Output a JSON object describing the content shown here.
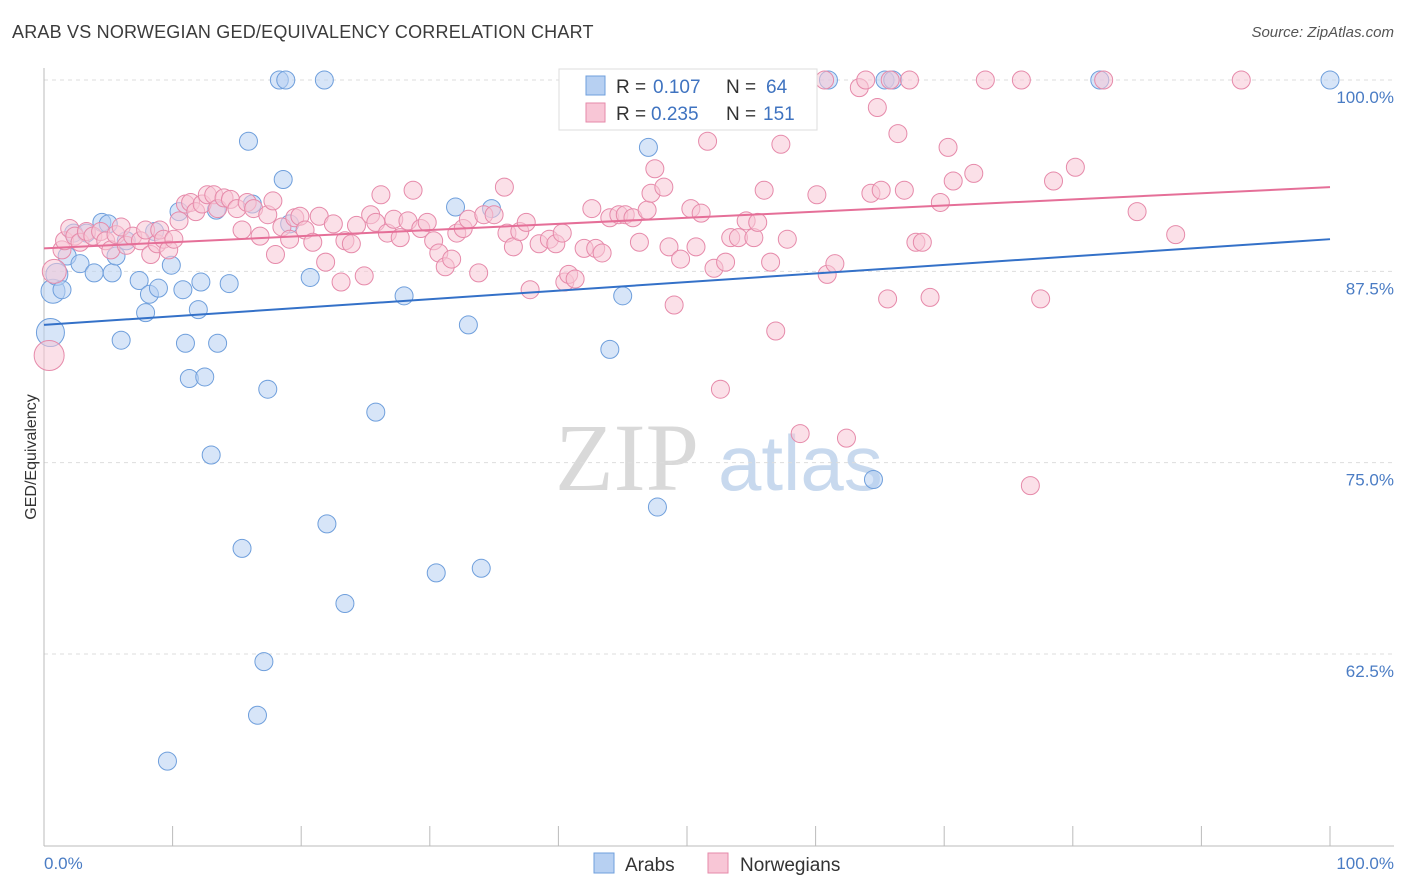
{
  "title": "ARAB VS NORWEGIAN GED/EQUIVALENCY CORRELATION CHART",
  "source": "Source: ZipAtlas.com",
  "watermark": {
    "zip": "ZIP",
    "atlas": "atlas"
  },
  "colors": {
    "arab_fill": "#b7d0f2",
    "arab_stroke": "#6f9fdc",
    "arab_line": "#3471c8",
    "norw_fill": "#f8c6d6",
    "norw_stroke": "#e68aaa",
    "norw_line": "#e56f98",
    "tick_label": "#4a7cc4",
    "grid": "#dddddd"
  },
  "legend": {
    "r_label": "R =",
    "n_label": "N =",
    "rows": [
      {
        "r": "0.107",
        "n": "64"
      },
      {
        "r": "0.235",
        "n": "151"
      }
    ]
  },
  "chart_data": {
    "type": "scatter",
    "title": "ARAB VS NORWEGIAN GED/EQUIVALENCY CORRELATION CHART",
    "xlabel": "",
    "ylabel": "GED/Equivalency",
    "xlim": [
      0,
      100
    ],
    "ylim": [
      50,
      100
    ],
    "x_tick_labels": [
      "0.0%",
      "100.0%"
    ],
    "y_ticks": [
      {
        "value": 100,
        "label": "100.0%"
      },
      {
        "value": 87.5,
        "label": "87.5%"
      },
      {
        "value": 75,
        "label": "75.0%"
      },
      {
        "value": 62.5,
        "label": "62.5%"
      }
    ],
    "grid": true,
    "legend_position": "bottom",
    "series": [
      {
        "name": "Arabs",
        "trend": {
          "x": [
            0,
            100
          ],
          "y": [
            84.0,
            89.6
          ]
        },
        "points": [
          [
            0.5,
            83.5,
            14
          ],
          [
            0.7,
            86.2,
            12
          ],
          [
            1.0,
            87.3,
            11
          ],
          [
            1.4,
            86.3,
            9
          ],
          [
            1.8,
            88.5,
            9
          ],
          [
            2.3,
            90.0,
            9
          ],
          [
            2.8,
            88.0,
            9
          ],
          [
            3.3,
            90.0,
            9
          ],
          [
            3.9,
            87.4,
            9
          ],
          [
            4.5,
            90.7,
            9
          ],
          [
            5.0,
            90.6,
            9
          ],
          [
            5.3,
            87.4,
            9
          ],
          [
            5.6,
            88.5,
            9
          ],
          [
            6.0,
            83.0,
            9
          ],
          [
            6.4,
            89.5,
            9
          ],
          [
            7.4,
            86.9,
            9
          ],
          [
            7.9,
            84.8,
            9
          ],
          [
            8.2,
            86.0,
            9
          ],
          [
            8.6,
            90.1,
            9
          ],
          [
            8.9,
            86.4,
            9
          ],
          [
            9.6,
            55.5,
            9
          ],
          [
            9.9,
            87.9,
            9
          ],
          [
            10.5,
            91.4,
            9
          ],
          [
            10.8,
            86.3,
            9
          ],
          [
            11.0,
            82.8,
            9
          ],
          [
            11.3,
            80.5,
            9
          ],
          [
            12.0,
            85.0,
            9
          ],
          [
            12.2,
            86.8,
            9
          ],
          [
            12.5,
            80.6,
            9
          ],
          [
            13.0,
            75.5,
            9
          ],
          [
            13.4,
            91.5,
            9
          ],
          [
            13.5,
            82.8,
            9
          ],
          [
            14.4,
            86.7,
            9
          ],
          [
            15.4,
            69.4,
            9
          ],
          [
            15.9,
            96.0,
            9
          ],
          [
            16.2,
            91.9,
            9
          ],
          [
            16.6,
            58.5,
            9
          ],
          [
            17.1,
            62.0,
            9
          ],
          [
            17.4,
            79.8,
            9
          ],
          [
            18.3,
            100.0,
            9
          ],
          [
            18.6,
            93.5,
            9
          ],
          [
            18.8,
            100.0,
            9
          ],
          [
            19.1,
            90.6,
            9
          ],
          [
            20.7,
            87.1,
            9
          ],
          [
            21.8,
            100.0,
            9
          ],
          [
            22.0,
            71.0,
            9
          ],
          [
            23.4,
            65.8,
            9
          ],
          [
            25.8,
            78.3,
            9
          ],
          [
            28.0,
            85.9,
            9
          ],
          [
            30.5,
            67.8,
            9
          ],
          [
            32.0,
            91.7,
            9
          ],
          [
            33.0,
            84.0,
            9
          ],
          [
            34.0,
            68.1,
            9
          ],
          [
            34.8,
            91.6,
            9
          ],
          [
            44.0,
            82.4,
            9
          ],
          [
            45.0,
            85.9,
            9
          ],
          [
            47.0,
            95.6,
            9
          ],
          [
            47.7,
            72.1,
            9
          ],
          [
            61.0,
            100.0,
            9
          ],
          [
            65.4,
            100.0,
            9
          ],
          [
            64.5,
            73.9,
            9
          ],
          [
            66.0,
            100.0,
            9
          ],
          [
            82.1,
            100.0,
            9
          ],
          [
            100,
            100.0,
            9
          ]
        ]
      },
      {
        "name": "Norwegians",
        "trend": {
          "x": [
            0,
            100
          ],
          "y": [
            89.0,
            93.0
          ]
        },
        "points": [
          [
            0.4,
            82.0,
            15
          ],
          [
            0.8,
            87.5,
            12
          ],
          [
            1.4,
            88.9,
            9
          ],
          [
            1.6,
            89.5,
            9
          ],
          [
            2.0,
            90.3,
            9
          ],
          [
            2.4,
            89.8,
            9
          ],
          [
            2.8,
            89.4,
            9
          ],
          [
            3.3,
            90.1,
            9
          ],
          [
            3.8,
            89.8,
            9
          ],
          [
            4.4,
            90.1,
            9
          ],
          [
            4.8,
            89.5,
            9
          ],
          [
            5.2,
            88.9,
            9
          ],
          [
            5.6,
            89.9,
            9
          ],
          [
            6.0,
            90.4,
            9
          ],
          [
            6.4,
            89.2,
            9
          ],
          [
            6.9,
            89.8,
            9
          ],
          [
            7.5,
            89.5,
            9
          ],
          [
            7.9,
            90.2,
            9
          ],
          [
            8.3,
            88.6,
            9
          ],
          [
            8.8,
            89.3,
            9
          ],
          [
            9.0,
            90.2,
            9
          ],
          [
            9.3,
            89.6,
            9
          ],
          [
            9.7,
            88.9,
            9
          ],
          [
            10.1,
            89.6,
            9
          ],
          [
            10.5,
            90.8,
            9
          ],
          [
            11.0,
            91.9,
            9
          ],
          [
            11.4,
            92.0,
            9
          ],
          [
            11.8,
            91.4,
            9
          ],
          [
            12.3,
            91.9,
            9
          ],
          [
            12.7,
            92.5,
            9
          ],
          [
            13.2,
            92.5,
            9
          ],
          [
            13.5,
            91.6,
            9
          ],
          [
            14.0,
            92.3,
            9
          ],
          [
            14.5,
            92.2,
            9
          ],
          [
            15.0,
            91.6,
            9
          ],
          [
            15.4,
            90.2,
            9
          ],
          [
            15.8,
            92.0,
            9
          ],
          [
            16.3,
            91.6,
            9
          ],
          [
            16.8,
            89.8,
            9
          ],
          [
            17.4,
            91.2,
            9
          ],
          [
            17.8,
            92.1,
            9
          ],
          [
            18.0,
            88.6,
            9
          ],
          [
            18.5,
            90.4,
            9
          ],
          [
            19.1,
            89.6,
            9
          ],
          [
            19.5,
            91.0,
            9
          ],
          [
            19.9,
            91.1,
            9
          ],
          [
            20.3,
            90.2,
            9
          ],
          [
            20.9,
            89.4,
            9
          ],
          [
            21.4,
            91.1,
            9
          ],
          [
            21.9,
            88.1,
            9
          ],
          [
            22.5,
            90.6,
            9
          ],
          [
            23.1,
            86.8,
            9
          ],
          [
            23.4,
            89.5,
            9
          ],
          [
            23.9,
            89.3,
            9
          ],
          [
            24.3,
            90.5,
            9
          ],
          [
            24.9,
            87.2,
            9
          ],
          [
            25.4,
            91.2,
            9
          ],
          [
            25.8,
            90.7,
            9
          ],
          [
            26.2,
            92.5,
            9
          ],
          [
            26.7,
            90.0,
            9
          ],
          [
            27.2,
            90.9,
            9
          ],
          [
            27.7,
            89.7,
            9
          ],
          [
            28.3,
            90.8,
            9
          ],
          [
            28.7,
            92.8,
            9
          ],
          [
            29.3,
            90.3,
            9
          ],
          [
            29.8,
            90.7,
            9
          ],
          [
            30.3,
            89.5,
            9
          ],
          [
            30.7,
            88.7,
            9
          ],
          [
            31.2,
            87.8,
            9
          ],
          [
            31.7,
            88.3,
            9
          ],
          [
            32.1,
            90.0,
            9
          ],
          [
            32.6,
            90.3,
            9
          ],
          [
            33.0,
            90.9,
            9
          ],
          [
            33.8,
            87.4,
            9
          ],
          [
            34.2,
            91.2,
            9
          ],
          [
            35.0,
            91.2,
            9
          ],
          [
            35.8,
            93.0,
            9
          ],
          [
            36.0,
            90.0,
            9
          ],
          [
            36.5,
            89.1,
            9
          ],
          [
            37.0,
            90.1,
            9
          ],
          [
            37.5,
            90.7,
            9
          ],
          [
            37.8,
            86.3,
            9
          ],
          [
            38.5,
            89.3,
            9
          ],
          [
            39.3,
            89.6,
            9
          ],
          [
            39.8,
            89.3,
            9
          ],
          [
            40.3,
            90.0,
            9
          ],
          [
            40.5,
            86.8,
            9
          ],
          [
            40.8,
            87.3,
            9
          ],
          [
            41.3,
            87.0,
            9
          ],
          [
            42.0,
            89.0,
            9
          ],
          [
            42.6,
            91.6,
            9
          ],
          [
            42.9,
            89.0,
            9
          ],
          [
            43.4,
            88.7,
            9
          ],
          [
            44.0,
            91.0,
            9
          ],
          [
            44.7,
            91.2,
            9
          ],
          [
            45.2,
            91.2,
            9
          ],
          [
            45.8,
            91.0,
            9
          ],
          [
            46.3,
            89.4,
            9
          ],
          [
            46.9,
            91.5,
            9
          ],
          [
            47.2,
            92.6,
            9
          ],
          [
            47.5,
            94.2,
            9
          ],
          [
            48.2,
            93.0,
            9
          ],
          [
            48.6,
            89.1,
            9
          ],
          [
            49.0,
            85.3,
            9
          ],
          [
            49.5,
            88.3,
            9
          ],
          [
            50.3,
            91.6,
            9
          ],
          [
            50.7,
            89.1,
            9
          ],
          [
            51.1,
            91.3,
            9
          ],
          [
            51.6,
            96.0,
            9
          ],
          [
            52.1,
            87.7,
            9
          ],
          [
            52.6,
            79.8,
            9
          ],
          [
            53.0,
            88.1,
            9
          ],
          [
            53.4,
            89.7,
            9
          ],
          [
            54.0,
            89.7,
            9
          ],
          [
            54.6,
            90.8,
            9
          ],
          [
            55.2,
            89.7,
            9
          ],
          [
            55.5,
            90.7,
            9
          ],
          [
            56.0,
            92.8,
            9
          ],
          [
            56.5,
            88.1,
            9
          ],
          [
            56.9,
            83.6,
            9
          ],
          [
            57.3,
            95.8,
            9
          ],
          [
            57.8,
            89.6,
            9
          ],
          [
            58.8,
            76.9,
            9
          ],
          [
            60.1,
            92.5,
            9
          ],
          [
            60.7,
            100.0,
            9
          ],
          [
            60.9,
            87.3,
            9
          ],
          [
            61.5,
            88.0,
            9
          ],
          [
            62.4,
            76.6,
            9
          ],
          [
            63.4,
            99.5,
            9
          ],
          [
            63.9,
            100.0,
            9
          ],
          [
            64.3,
            92.6,
            9
          ],
          [
            64.8,
            98.2,
            9
          ],
          [
            65.1,
            92.8,
            9
          ],
          [
            65.6,
            85.7,
            9
          ],
          [
            65.8,
            100.0,
            9
          ],
          [
            66.4,
            96.5,
            9
          ],
          [
            66.9,
            92.8,
            9
          ],
          [
            67.3,
            100.0,
            9
          ],
          [
            67.8,
            89.4,
            9
          ],
          [
            68.3,
            89.4,
            9
          ],
          [
            68.9,
            85.8,
            9
          ],
          [
            69.7,
            92.0,
            9
          ],
          [
            70.3,
            95.6,
            9
          ],
          [
            70.7,
            93.4,
            9
          ],
          [
            72.3,
            93.9,
            9
          ],
          [
            73.2,
            100.0,
            9
          ],
          [
            76.0,
            100.0,
            9
          ],
          [
            76.7,
            73.5,
            9
          ],
          [
            77.5,
            85.7,
            9
          ],
          [
            78.5,
            93.4,
            9
          ],
          [
            80.2,
            94.3,
            9
          ],
          [
            82.4,
            100.0,
            9
          ],
          [
            85.0,
            91.4,
            9
          ],
          [
            88.0,
            89.9,
            9
          ],
          [
            93.1,
            100.0,
            9
          ]
        ]
      }
    ]
  }
}
